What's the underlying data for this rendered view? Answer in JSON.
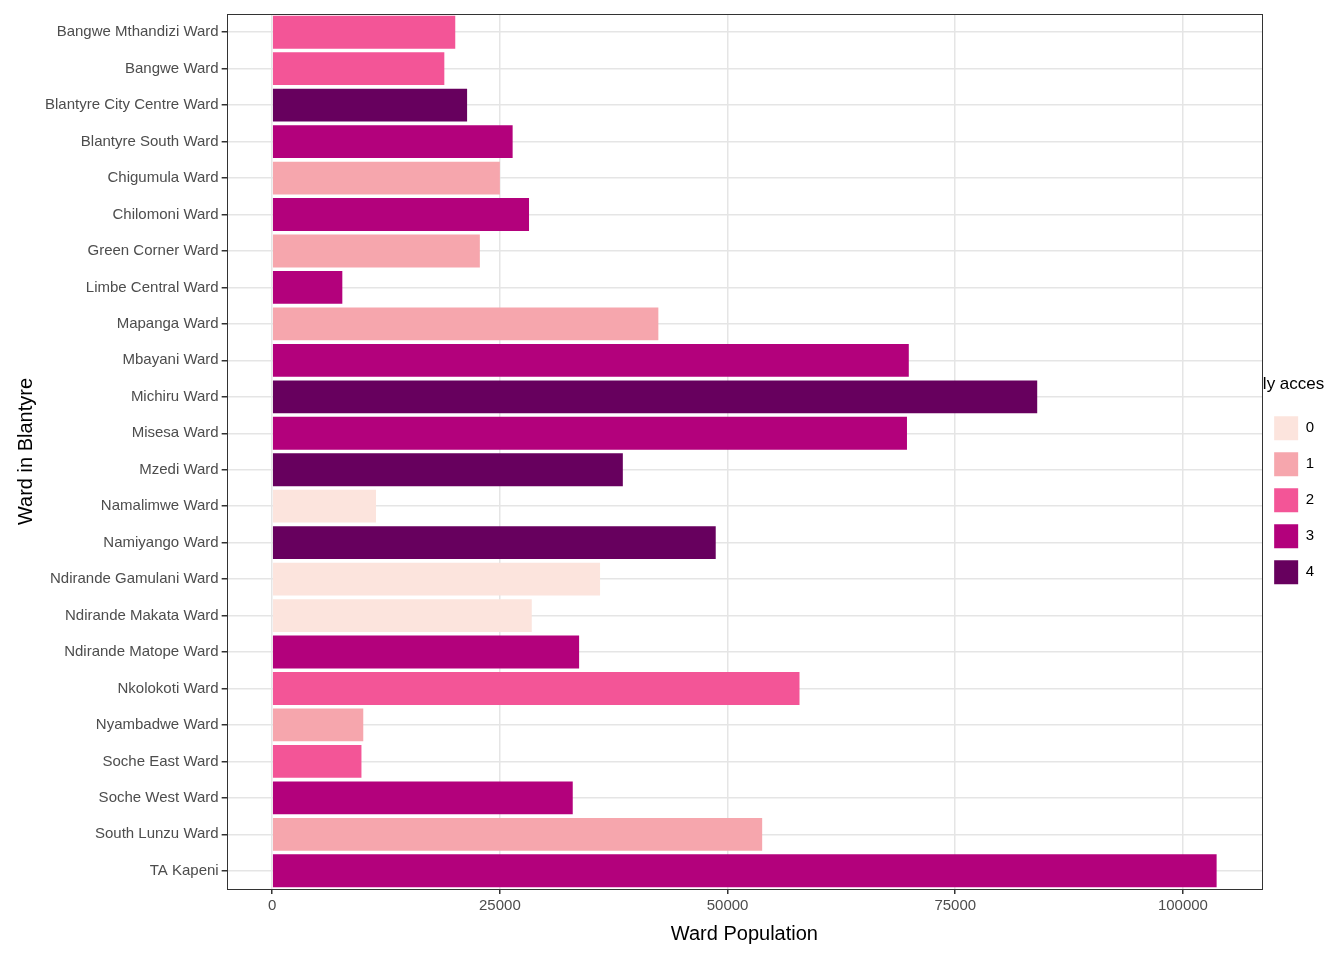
{
  "chart_data": {
    "type": "bar",
    "orientation": "horizontal",
    "x_label": "Ward Population",
    "y_label": "Ward in Blantyre",
    "legend_title": "Number of publicly accessible waste skips",
    "legend": "right",
    "grid": true,
    "categories": [
      "Bangwe Mthandizi Ward",
      "Bangwe Ward",
      "Blantyre City Centre Ward",
      "Blantyre South Ward",
      "Chigumula Ward",
      "Chilomoni Ward",
      "Green Corner Ward",
      "Limbe Central Ward",
      "Mapanga Ward",
      "Mbayani Ward",
      "Michiru Ward",
      "Misesa Ward",
      "Mzedi Ward",
      "Namalimwe Ward",
      "Namiyango Ward",
      "Ndirande Gamulani Ward",
      "Ndirande Makata Ward",
      "Ndirande Matope Ward",
      "Nkolokoti Ward",
      "Nyambadwe Ward",
      "Soche East Ward",
      "Soche West Ward",
      "South Lunzu Ward",
      "TA Kapeni"
    ],
    "series": [
      {
        "name": "0",
        "color": "#FCE4DD",
        "values": [
          null,
          null,
          null,
          null,
          null,
          null,
          null,
          null,
          null,
          null,
          null,
          null,
          null,
          11400,
          null,
          36000,
          28500,
          null,
          null,
          null,
          null,
          null,
          null,
          null
        ]
      },
      {
        "name": "1",
        "color": "#F6A6AD",
        "values": [
          null,
          null,
          null,
          null,
          25000,
          null,
          22800,
          null,
          42400,
          null,
          null,
          null,
          null,
          null,
          null,
          null,
          null,
          null,
          null,
          10000,
          null,
          null,
          53800,
          null
        ]
      },
      {
        "name": "2",
        "color": "#F35597",
        "values": [
          20100,
          18900,
          null,
          null,
          null,
          null,
          null,
          null,
          null,
          null,
          null,
          null,
          null,
          null,
          null,
          null,
          null,
          null,
          57900,
          null,
          9800,
          null,
          null,
          null
        ]
      },
      {
        "name": "3",
        "color": "#B3017C",
        "values": [
          null,
          null,
          null,
          26400,
          null,
          28200,
          null,
          7700,
          null,
          69900,
          null,
          69700,
          null,
          null,
          null,
          null,
          null,
          33700,
          null,
          null,
          null,
          33000,
          null,
          103700
        ]
      },
      {
        "name": "4",
        "color": "#67005E",
        "values": [
          null,
          null,
          21400,
          null,
          null,
          null,
          null,
          null,
          null,
          null,
          84000,
          null,
          38500,
          null,
          48700,
          null,
          null,
          null,
          null,
          null,
          null,
          null,
          null,
          null
        ]
      }
    ],
    "xlim": [
      -5000,
      108700
    ],
    "xticks": [
      0,
      25000,
      50000,
      75000,
      100000
    ]
  }
}
